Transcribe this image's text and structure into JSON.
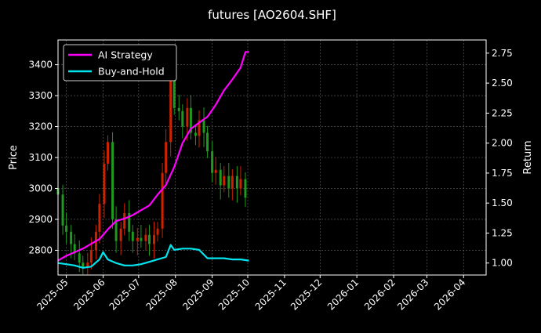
{
  "chart_data": {
    "type": "line",
    "title": "futures [AO2604.SHF]",
    "ylabel_left": "Price",
    "ylabel_right": "Return",
    "xlabel": "",
    "grid": true,
    "legend_placement": "top-left",
    "background": "#000000",
    "x_ticks": [
      "2025-05",
      "2025-06",
      "2025-07",
      "2025-08",
      "2025-09",
      "2025-10",
      "2025-11",
      "2025-12",
      "2026-01",
      "2026-02",
      "2026-03",
      "2026-04"
    ],
    "x_range": [
      "2025-04-24",
      "2026-04-20"
    ],
    "y_left_ticks": [
      2800,
      2900,
      3000,
      3100,
      3200,
      3300,
      3400
    ],
    "y_left_range": [
      2720,
      3480
    ],
    "y_right_ticks": [
      1.0,
      1.25,
      1.5,
      1.75,
      2.0,
      2.25,
      2.5,
      2.75
    ],
    "y_right_range": [
      0.9,
      2.86
    ],
    "candle_colors": {
      "up": "#cc2200",
      "down": "#1f9a1f"
    },
    "candles_close": [
      [
        "2025-04-24",
        2980
      ],
      [
        "2025-04-28",
        2880
      ],
      [
        "2025-05-01",
        2860
      ],
      [
        "2025-05-05",
        2820
      ],
      [
        "2025-05-08",
        2790
      ],
      [
        "2025-05-12",
        2760
      ],
      [
        "2025-05-15",
        2745
      ],
      [
        "2025-05-19",
        2760
      ],
      [
        "2025-05-22",
        2800
      ],
      [
        "2025-05-26",
        2860
      ],
      [
        "2025-05-29",
        2950
      ],
      [
        "2025-06-02",
        3080
      ],
      [
        "2025-06-05",
        3150
      ],
      [
        "2025-06-09",
        2900
      ],
      [
        "2025-06-12",
        2830
      ],
      [
        "2025-06-16",
        2870
      ],
      [
        "2025-06-19",
        2920
      ],
      [
        "2025-06-23",
        2860
      ],
      [
        "2025-06-26",
        2830
      ],
      [
        "2025-06-30",
        2840
      ],
      [
        "2025-07-03",
        2830
      ],
      [
        "2025-07-07",
        2850
      ],
      [
        "2025-07-10",
        2820
      ],
      [
        "2025-07-14",
        2850
      ],
      [
        "2025-07-17",
        2870
      ],
      [
        "2025-07-21",
        3050
      ],
      [
        "2025-07-24",
        3150
      ],
      [
        "2025-07-28",
        3350
      ],
      [
        "2025-07-31",
        3260
      ],
      [
        "2025-08-04",
        3250
      ],
      [
        "2025-08-07",
        3200
      ],
      [
        "2025-08-11",
        3260
      ],
      [
        "2025-08-14",
        3180
      ],
      [
        "2025-08-18",
        3170
      ],
      [
        "2025-08-21",
        3220
      ],
      [
        "2025-08-25",
        3180
      ],
      [
        "2025-08-28",
        3120
      ],
      [
        "2025-09-01",
        3050
      ],
      [
        "2025-09-04",
        3060
      ],
      [
        "2025-09-08",
        3010
      ],
      [
        "2025-09-11",
        3040
      ],
      [
        "2025-09-15",
        3000
      ],
      [
        "2025-09-18",
        3040
      ],
      [
        "2025-09-22",
        3000
      ],
      [
        "2025-09-25",
        3030
      ],
      [
        "2025-09-29",
        2970
      ]
    ],
    "series": [
      {
        "name": "AI Strategy",
        "color": "#ff00ff",
        "axis": "right",
        "x": [
          "2025-04-24",
          "2025-05-01",
          "2025-05-08",
          "2025-05-15",
          "2025-05-22",
          "2025-05-29",
          "2025-06-05",
          "2025-06-12",
          "2025-06-19",
          "2025-06-26",
          "2025-07-03",
          "2025-07-10",
          "2025-07-17",
          "2025-07-24",
          "2025-07-31",
          "2025-08-07",
          "2025-08-14",
          "2025-08-21",
          "2025-08-28",
          "2025-09-04",
          "2025-09-11",
          "2025-09-18",
          "2025-09-25",
          "2025-09-29",
          "2025-10-02"
        ],
        "values": [
          1.02,
          1.06,
          1.09,
          1.12,
          1.16,
          1.2,
          1.28,
          1.35,
          1.37,
          1.4,
          1.44,
          1.48,
          1.57,
          1.65,
          1.8,
          2.0,
          2.12,
          2.17,
          2.22,
          2.32,
          2.44,
          2.53,
          2.63,
          2.76,
          2.76
        ]
      },
      {
        "name": "Buy-and-Hold",
        "color": "#00e5ee",
        "axis": "right",
        "x": [
          "2025-04-24",
          "2025-05-01",
          "2025-05-08",
          "2025-05-15",
          "2025-05-22",
          "2025-05-29",
          "2025-06-01",
          "2025-06-05",
          "2025-06-12",
          "2025-06-19",
          "2025-06-26",
          "2025-07-03",
          "2025-07-10",
          "2025-07-17",
          "2025-07-24",
          "2025-07-28",
          "2025-07-31",
          "2025-08-07",
          "2025-08-14",
          "2025-08-21",
          "2025-08-28",
          "2025-09-04",
          "2025-09-11",
          "2025-09-18",
          "2025-09-25",
          "2025-10-02"
        ],
        "values": [
          1.0,
          0.99,
          0.98,
          0.96,
          0.97,
          1.03,
          1.09,
          1.03,
          1.0,
          0.98,
          0.98,
          0.99,
          1.01,
          1.03,
          1.05,
          1.15,
          1.11,
          1.12,
          1.12,
          1.11,
          1.04,
          1.04,
          1.04,
          1.03,
          1.03,
          1.02
        ]
      }
    ]
  }
}
